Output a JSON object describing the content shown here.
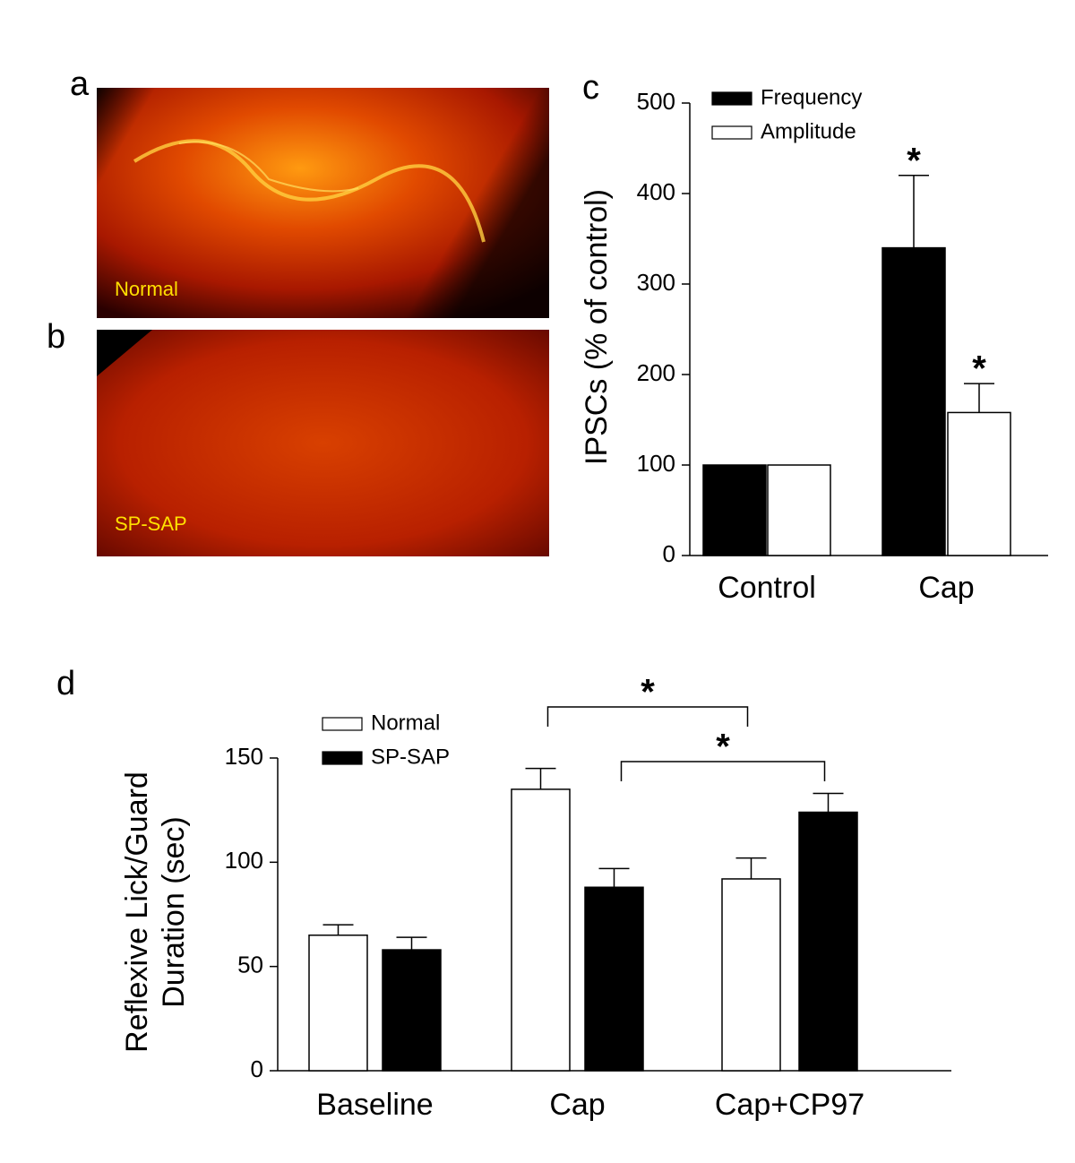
{
  "panels": {
    "a": {
      "label": "a",
      "caption": "Normal"
    },
    "b": {
      "label": "b",
      "caption": "SP-SAP"
    }
  },
  "chart_data": [
    {
      "type": "bar",
      "panel_label": "c",
      "ylabel": "IPSCs (% of control)",
      "categories": [
        "Control",
        "Cap"
      ],
      "series": [
        {
          "name": "Frequency",
          "color": "#000000",
          "values": [
            100,
            340
          ],
          "errors": [
            null,
            80
          ]
        },
        {
          "name": "Amplitude",
          "color": "#ffffff",
          "values": [
            100,
            158
          ],
          "errors": [
            null,
            32
          ]
        }
      ],
      "annotations": [
        "*",
        "*"
      ],
      "ylim": [
        0,
        500
      ],
      "yticks": [
        0,
        100,
        200,
        300,
        400,
        500
      ],
      "grid": false,
      "legend": "top-left"
    },
    {
      "type": "bar",
      "panel_label": "d",
      "ylabel": [
        "Reflexive Lick/Guard",
        "Duration (sec)"
      ],
      "categories": [
        "Baseline",
        "Cap",
        "Cap+CP97"
      ],
      "series": [
        {
          "name": "Normal",
          "color": "#ffffff",
          "values": [
            65,
            135,
            92
          ],
          "errors": [
            5,
            10,
            10
          ]
        },
        {
          "name": "SP-SAP",
          "color": "#000000",
          "values": [
            58,
            88,
            124
          ],
          "errors": [
            6,
            9,
            9
          ]
        }
      ],
      "annotations": [
        "*",
        "*"
      ],
      "ylim": [
        0,
        150
      ],
      "yticks": [
        0,
        50,
        100,
        150
      ],
      "grid": false,
      "legend": "top-left"
    }
  ]
}
